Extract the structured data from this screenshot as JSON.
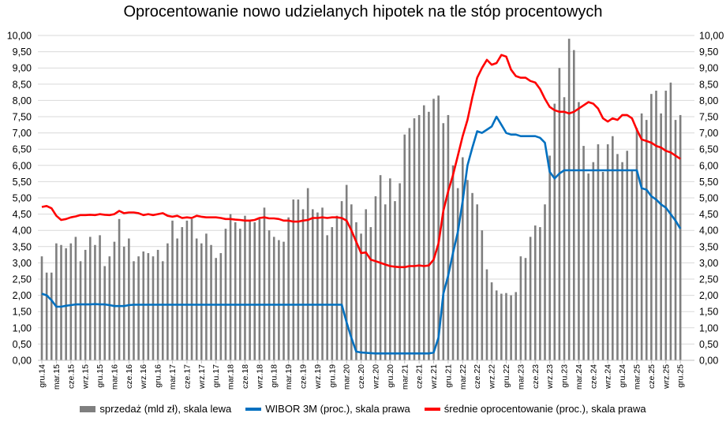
{
  "chart_data": {
    "type": "bar+line",
    "title": "Oprocentowanie nowo udzielanych hipotek na tle stóp procentowych",
    "ylim_left": [
      0,
      10
    ],
    "ylim_right": [
      0,
      10
    ],
    "ytick_labels": [
      "0,00",
      "0,50",
      "1,00",
      "1,50",
      "2,00",
      "2,50",
      "3,00",
      "3,50",
      "4,00",
      "4,50",
      "5,00",
      "5,50",
      "6,00",
      "6,50",
      "7,00",
      "7,50",
      "8,00",
      "8,50",
      "9,00",
      "9,50",
      "10,00"
    ],
    "grid": true,
    "legend_position": "bottom",
    "x_start": "gru.14",
    "x_end": "gru.25",
    "x_tick_labels": [
      "gru.14",
      "mar.15",
      "cze.15",
      "wrz.15",
      "gru.15",
      "mar.16",
      "cze.16",
      "wrz.16",
      "gru.16",
      "mar.17",
      "cze.17",
      "wrz.17",
      "gru.17",
      "mar.18",
      "cze.18",
      "wrz.18",
      "gru.18",
      "mar.19",
      "cze.19",
      "wrz.19",
      "gru.19",
      "mar.20",
      "cze.20",
      "wrz.20",
      "gru.20",
      "mar.21",
      "cze.21",
      "wrz.21",
      "gru.21",
      "mar.22",
      "cze.22",
      "wrz.22",
      "gru.22",
      "mar.23",
      "cze.23",
      "wrz.23",
      "gru.23",
      "mar.24",
      "cze.24",
      "wrz.24",
      "gru.24",
      "mar.25",
      "cze.25",
      "wrz.25",
      "gru.25"
    ],
    "series": [
      {
        "name": "sprzedaż (mld zł), skala lewa",
        "type": "bar",
        "axis": "left",
        "color": "#7f7f7f",
        "values": [
          3.2,
          2.7,
          2.7,
          3.6,
          3.55,
          3.45,
          3.6,
          3.8,
          3.05,
          3.4,
          3.8,
          3.55,
          3.85,
          2.9,
          3.2,
          3.65,
          4.35,
          3.5,
          3.75,
          3.05,
          3.2,
          3.35,
          3.3,
          3.2,
          3.4,
          3.05,
          3.6,
          4.3,
          3.75,
          4.1,
          4.3,
          4.35,
          3.75,
          3.6,
          3.9,
          3.55,
          3.15,
          3.3,
          4.05,
          4.5,
          4.25,
          4.05,
          4.45,
          4.3,
          4.25,
          4.35,
          4.7,
          4.0,
          3.8,
          3.7,
          3.65,
          4.4,
          4.95,
          4.95,
          4.65,
          5.3,
          4.65,
          4.55,
          4.7,
          3.85,
          4.1,
          4.45,
          4.9,
          5.4,
          4.8,
          4.25,
          3.9,
          4.65,
          4.1,
          5.05,
          5.7,
          4.8,
          5.6,
          4.9,
          5.45,
          6.95,
          7.15,
          7.45,
          7.55,
          7.85,
          7.65,
          8.05,
          8.15,
          7.3,
          7.55,
          6.0,
          5.3,
          6.25,
          5.55,
          5.15,
          4.8,
          4.0,
          2.8,
          2.4,
          2.15,
          2.05,
          2.07,
          2.0,
          2.1,
          3.2,
          3.15,
          3.8,
          4.15,
          4.1,
          4.8,
          6.3,
          7.9,
          9.0,
          8.1,
          9.9,
          9.55,
          7.95,
          6.6,
          5.75,
          6.1,
          6.65,
          5.8,
          6.65,
          6.9,
          6.35,
          6.1,
          6.45,
          5.85,
          7.15,
          7.6,
          7.4,
          8.2,
          8.3,
          7.6,
          8.3,
          8.55,
          7.4,
          7.55
        ]
      },
      {
        "name": "WIBOR 3M (proc.), skala prawa",
        "type": "line",
        "axis": "right",
        "color": "#0070c0",
        "values": [
          2.05,
          2.0,
          1.85,
          1.65,
          1.65,
          1.68,
          1.7,
          1.72,
          1.72,
          1.72,
          1.72,
          1.73,
          1.72,
          1.72,
          1.7,
          1.67,
          1.67,
          1.67,
          1.7,
          1.71,
          1.71,
          1.71,
          1.71,
          1.71,
          1.71,
          1.71,
          1.71,
          1.71,
          1.71,
          1.71,
          1.71,
          1.71,
          1.71,
          1.71,
          1.71,
          1.71,
          1.71,
          1.71,
          1.71,
          1.71,
          1.71,
          1.71,
          1.71,
          1.71,
          1.71,
          1.71,
          1.71,
          1.71,
          1.71,
          1.71,
          1.71,
          1.71,
          1.71,
          1.71,
          1.71,
          1.71,
          1.71,
          1.71,
          1.71,
          1.71,
          1.71,
          1.71,
          1.71,
          1.17,
          0.69,
          0.27,
          0.24,
          0.23,
          0.22,
          0.21,
          0.21,
          0.21,
          0.21,
          0.21,
          0.21,
          0.21,
          0.21,
          0.21,
          0.21,
          0.21,
          0.21,
          0.24,
          0.7,
          2.05,
          2.6,
          3.3,
          3.95,
          4.9,
          6.0,
          6.55,
          7.05,
          7.0,
          7.1,
          7.2,
          7.5,
          7.25,
          7.0,
          6.95,
          6.95,
          6.9,
          6.9,
          6.9,
          6.9,
          6.85,
          6.7,
          5.8,
          5.6,
          5.75,
          5.85,
          5.85,
          5.85,
          5.85,
          5.85,
          5.85,
          5.85,
          5.85,
          5.85,
          5.85,
          5.85,
          5.85,
          5.85,
          5.85,
          5.85,
          5.85,
          5.3,
          5.25,
          5.05,
          4.95,
          4.8,
          4.7,
          4.5,
          4.3,
          4.05
        ]
      },
      {
        "name": "średnie oprocentowanie (proc.), skala prawa",
        "type": "line",
        "axis": "right",
        "color": "#ff0000",
        "values": [
          4.72,
          4.75,
          4.68,
          4.45,
          4.32,
          4.35,
          4.4,
          4.43,
          4.47,
          4.47,
          4.48,
          4.47,
          4.5,
          4.48,
          4.47,
          4.5,
          4.6,
          4.53,
          4.55,
          4.55,
          4.53,
          4.47,
          4.5,
          4.47,
          4.5,
          4.53,
          4.45,
          4.42,
          4.45,
          4.38,
          4.4,
          4.38,
          4.45,
          4.42,
          4.4,
          4.4,
          4.4,
          4.38,
          4.35,
          4.35,
          4.33,
          4.32,
          4.3,
          4.3,
          4.32,
          4.38,
          4.4,
          4.37,
          4.37,
          4.35,
          4.3,
          4.3,
          4.27,
          4.27,
          4.3,
          4.32,
          4.38,
          4.38,
          4.4,
          4.38,
          4.4,
          4.4,
          4.38,
          4.3,
          4.0,
          3.65,
          3.3,
          3.32,
          3.1,
          3.05,
          3.0,
          2.95,
          2.9,
          2.88,
          2.87,
          2.87,
          2.9,
          2.9,
          2.92,
          2.9,
          2.92,
          3.1,
          3.6,
          4.6,
          5.2,
          5.7,
          6.3,
          6.9,
          7.4,
          8.1,
          8.7,
          9.0,
          9.25,
          9.1,
          9.15,
          9.4,
          9.35,
          8.95,
          8.75,
          8.7,
          8.7,
          8.6,
          8.55,
          8.35,
          8.05,
          7.8,
          7.7,
          7.65,
          7.65,
          7.6,
          7.65,
          7.75,
          7.85,
          7.95,
          7.9,
          7.75,
          7.45,
          7.35,
          7.45,
          7.4,
          7.55,
          7.55,
          7.45,
          7.1,
          6.8,
          6.75,
          6.7,
          6.6,
          6.55,
          6.45,
          6.4,
          6.3,
          6.2
        ]
      }
    ]
  }
}
